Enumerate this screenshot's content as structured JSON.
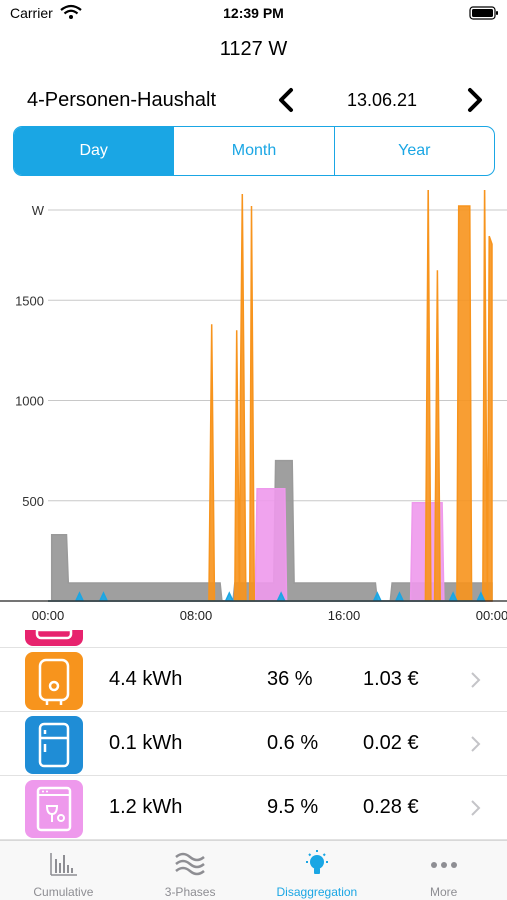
{
  "status": {
    "carrier": "Carrier",
    "time": "12:39 PM"
  },
  "power_reading": "1127 W",
  "header": {
    "household": "4-Personen-Haushalt",
    "date": "13.06.21"
  },
  "segments": [
    {
      "label": "Day",
      "active": true
    },
    {
      "label": "Month",
      "active": false
    },
    {
      "label": "Year",
      "active": false
    }
  ],
  "chart_data": {
    "type": "area",
    "title": "",
    "ylabel": "W",
    "xlabel": "",
    "x_unit": "hours",
    "ylim": [
      0,
      2000
    ],
    "xlim": [
      0,
      24
    ],
    "y_ticks": [
      {
        "value": 500,
        "label": "500"
      },
      {
        "value": 1000,
        "label": "1000"
      },
      {
        "value": 1500,
        "label": "1500"
      },
      {
        "value": 1950,
        "label": "W"
      }
    ],
    "x_ticks": [
      {
        "value": 0,
        "label": "00:00"
      },
      {
        "value": 8,
        "label": "08:00"
      },
      {
        "value": 16,
        "label": "16:00"
      },
      {
        "value": 24,
        "label": "00:00"
      }
    ],
    "grid": true,
    "series": [
      {
        "color": "#9a9a9a",
        "points": [
          [
            0,
            0
          ],
          [
            0.2,
            0
          ],
          [
            0.2,
            330
          ],
          [
            1.0,
            330
          ],
          [
            1.1,
            90
          ],
          [
            9.3,
            90
          ],
          [
            9.4,
            0
          ],
          [
            10.0,
            0
          ],
          [
            10.1,
            90
          ],
          [
            12.2,
            90
          ],
          [
            12.3,
            700
          ],
          [
            13.2,
            700
          ],
          [
            13.3,
            90
          ],
          [
            17.7,
            90
          ],
          [
            17.8,
            0
          ],
          [
            18.5,
            0
          ],
          [
            18.6,
            90
          ],
          [
            24,
            90
          ],
          [
            24,
            0
          ]
        ]
      },
      {
        "color": "#ee99ec",
        "points": [
          [
            0,
            0
          ],
          [
            11.2,
            0
          ],
          [
            11.3,
            560
          ],
          [
            12.8,
            560
          ],
          [
            12.9,
            0
          ],
          [
            19.6,
            0
          ],
          [
            19.7,
            490
          ],
          [
            21.3,
            490
          ],
          [
            21.4,
            0
          ],
          [
            24,
            0
          ]
        ]
      },
      {
        "color": "#f7941d",
        "points": [
          [
            0,
            0
          ],
          [
            8.7,
            0
          ],
          [
            8.85,
            1380
          ],
          [
            9.0,
            0
          ],
          [
            10.1,
            0
          ],
          [
            10.2,
            1350
          ],
          [
            10.35,
            0
          ],
          [
            10.4,
            1000
          ],
          [
            10.5,
            2030
          ],
          [
            10.6,
            1000
          ],
          [
            10.7,
            0
          ],
          [
            10.9,
            0
          ],
          [
            11.0,
            1970
          ],
          [
            11.15,
            0
          ],
          [
            20.4,
            0
          ],
          [
            20.55,
            2080
          ],
          [
            20.7,
            0
          ],
          [
            20.9,
            0
          ],
          [
            21.05,
            1650
          ],
          [
            21.2,
            0
          ],
          [
            22.1,
            0
          ],
          [
            22.2,
            1970
          ],
          [
            22.8,
            1970
          ],
          [
            22.9,
            0
          ],
          [
            23.5,
            0
          ],
          [
            23.6,
            2090
          ],
          [
            23.75,
            0
          ],
          [
            23.85,
            1820
          ],
          [
            24,
            1780
          ],
          [
            24,
            0
          ]
        ]
      },
      {
        "color": "#1aa6e4",
        "points": [
          [
            0,
            0
          ],
          [
            1.5,
            0
          ],
          [
            1.7,
            40
          ],
          [
            1.9,
            0
          ],
          [
            2.8,
            0
          ],
          [
            3.0,
            40
          ],
          [
            3.2,
            0
          ],
          [
            9.6,
            0
          ],
          [
            9.8,
            40
          ],
          [
            10.0,
            0
          ],
          [
            12.4,
            0
          ],
          [
            12.6,
            40
          ],
          [
            12.8,
            0
          ],
          [
            17.6,
            0
          ],
          [
            17.8,
            40
          ],
          [
            18.0,
            0
          ],
          [
            18.8,
            0
          ],
          [
            19.0,
            40
          ],
          [
            19.2,
            0
          ],
          [
            21.7,
            0
          ],
          [
            21.9,
            40
          ],
          [
            22.1,
            0
          ],
          [
            23.2,
            0
          ],
          [
            23.4,
            40
          ],
          [
            23.6,
            0
          ]
        ]
      }
    ]
  },
  "rows": [
    {
      "color": "#e7236e",
      "kwh": "",
      "pct": "",
      "cost": "",
      "icon": "washing-machine-icon",
      "partial": true
    },
    {
      "color": "#f7941d",
      "kwh": "4.4 kWh",
      "pct": "36 %",
      "cost": "1.03 €",
      "icon": "water-heater-icon"
    },
    {
      "color": "#1f8dd6",
      "kwh": "0.1 kWh",
      "pct": "0.6 %",
      "cost": "0.02 €",
      "icon": "fridge-icon"
    },
    {
      "color": "#ee99ec",
      "kwh": "1.2 kWh",
      "pct": "9.5 %",
      "cost": "0.28 €",
      "icon": "dishwasher-icon"
    }
  ],
  "tabs": [
    {
      "label": "Cumulative",
      "icon": "bar-chart-icon",
      "active": false
    },
    {
      "label": "3-Phases",
      "icon": "waves-icon",
      "active": false
    },
    {
      "label": "Disaggregation",
      "icon": "lightbulb-icon",
      "active": true
    },
    {
      "label": "More",
      "icon": "more-dots-icon",
      "active": false
    }
  ]
}
